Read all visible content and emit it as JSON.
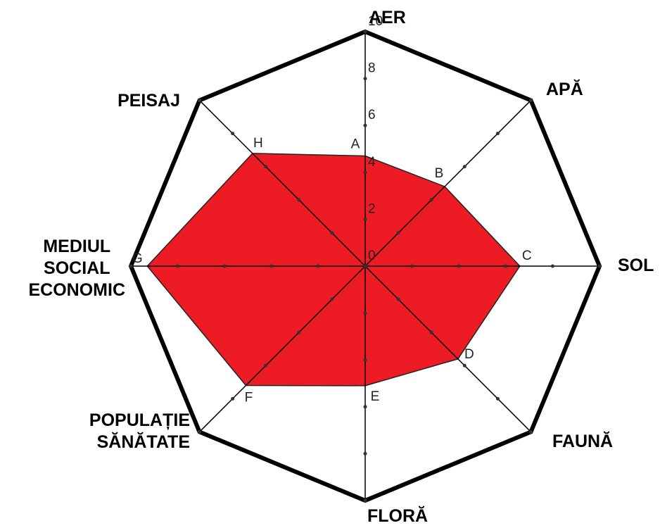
{
  "chart_data": {
    "type": "radar",
    "categories": [
      "AER",
      "APĂ",
      "SOL",
      "FAUNĂ",
      "FLORĂ",
      "POPULAȚIE\nSĂNĂTATE",
      "MEDIUL\nSOCIAL\nECONOMIC",
      "PEISAJ"
    ],
    "point_labels": [
      "A",
      "B",
      "C",
      "D",
      "E",
      "F",
      "G",
      "H"
    ],
    "values": [
      4.7,
      4.8,
      6.6,
      5.6,
      5.1,
      7.2,
      9.3,
      6.8
    ],
    "color": "#ed1c24",
    "rlim": [
      0,
      10
    ],
    "rticks": [
      0,
      2,
      4,
      6,
      8,
      10
    ]
  }
}
